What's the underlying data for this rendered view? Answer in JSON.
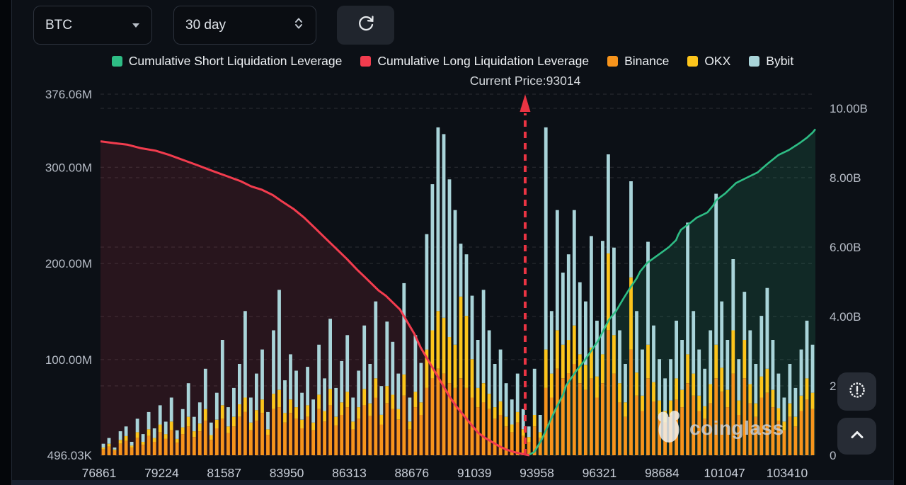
{
  "toolbar": {
    "symbol_select": {
      "value": "BTC",
      "icon": "caret-down"
    },
    "period_select": {
      "value": "30 day",
      "icon": "up-down-chevrons"
    },
    "refresh_button": {
      "icon": "refresh-cycle"
    }
  },
  "legend": {
    "items": [
      {
        "label": "Cumulative Short Liquidation Leverage",
        "color": "#2ebd85"
      },
      {
        "label": "Cumulative Long Liquidation Leverage",
        "color": "#f23c4e"
      },
      {
        "label": "Binance",
        "color": "#f7941c"
      },
      {
        "label": "OKX",
        "color": "#fdc51c"
      },
      {
        "label": "Bybit",
        "color": "#a9d4d9"
      }
    ]
  },
  "annotation": {
    "current_price": "Current Price:93014",
    "price_value": 93014
  },
  "watermark": {
    "text": "coinglass",
    "icon": "coinglass-logo"
  },
  "floating_buttons": {
    "alert_icon": "badge-alert",
    "scroll_top_icon": "chevron-up"
  },
  "chart_data": {
    "type": "mixed",
    "title": "",
    "left_axis": {
      "unit": "M",
      "min": 0.496,
      "max": 376.06,
      "ticks": [
        {
          "label": "376.06M",
          "value": 376.06
        },
        {
          "label": "300.00M",
          "value": 300
        },
        {
          "label": "200.00M",
          "value": 200
        },
        {
          "label": "100.00M",
          "value": 100
        },
        {
          "label": "496.03K",
          "value": 0.496
        }
      ]
    },
    "right_axis": {
      "unit": "B",
      "min": 0,
      "max": 10,
      "ticks": [
        {
          "label": "10.00B",
          "value": 10
        },
        {
          "label": "8.00B",
          "value": 8
        },
        {
          "label": "6.00B",
          "value": 6
        },
        {
          "label": "4.00B",
          "value": 4
        },
        {
          "label": "2.00B",
          "value": 2
        },
        {
          "label": "0",
          "value": 0
        }
      ]
    },
    "x_axis": {
      "labels": [
        "76861",
        "79224",
        "81587",
        "83950",
        "86313",
        "88676",
        "91039",
        "93958",
        "96321",
        "98684",
        "101047",
        "103410"
      ]
    },
    "bars": {
      "stack_order": [
        "Binance",
        "OKX",
        "Bybit"
      ],
      "colors": [
        "#f7941c",
        "#fdc51c",
        "#a9d4d9"
      ],
      "unit": "M",
      "values": [
        [
          6,
          2,
          4
        ],
        [
          9,
          3,
          6
        ],
        [
          5,
          1,
          2
        ],
        [
          12,
          4,
          9
        ],
        [
          15,
          5,
          10
        ],
        [
          8,
          2,
          4
        ],
        [
          18,
          6,
          14
        ],
        [
          11,
          3,
          8
        ],
        [
          20,
          7,
          18
        ],
        [
          14,
          4,
          10
        ],
        [
          24,
          8,
          20
        ],
        [
          17,
          5,
          13
        ],
        [
          26,
          9,
          25
        ],
        [
          13,
          4,
          9
        ],
        [
          22,
          7,
          19
        ],
        [
          30,
          10,
          35
        ],
        [
          19,
          6,
          15
        ],
        [
          25,
          8,
          22
        ],
        [
          36,
          12,
          42
        ],
        [
          16,
          5,
          13
        ],
        [
          28,
          9,
          28
        ],
        [
          38,
          14,
          68
        ],
        [
          23,
          7,
          20
        ],
        [
          30,
          10,
          30
        ],
        [
          40,
          13,
          42
        ],
        [
          45,
          15,
          90
        ],
        [
          26,
          8,
          26
        ],
        [
          36,
          11,
          38
        ],
        [
          44,
          14,
          52
        ],
        [
          21,
          6,
          18
        ],
        [
          48,
          16,
          66
        ],
        [
          50,
          18,
          104
        ],
        [
          34,
          10,
          34
        ],
        [
          44,
          14,
          47
        ],
        [
          38,
          12,
          38
        ],
        [
          28,
          9,
          28
        ],
        [
          40,
          12,
          40
        ],
        [
          26,
          8,
          24
        ],
        [
          48,
          15,
          52
        ],
        [
          35,
          11,
          34
        ],
        [
          52,
          17,
          73
        ],
        [
          31,
          9,
          30
        ],
        [
          42,
          13,
          43
        ],
        [
          50,
          16,
          59
        ],
        [
          27,
          8,
          25
        ],
        [
          38,
          12,
          38
        ],
        [
          52,
          17,
          66
        ],
        [
          41,
          13,
          41
        ],
        [
          60,
          20,
          80
        ],
        [
          32,
          10,
          30
        ],
        [
          54,
          18,
          67
        ],
        [
          48,
          15,
          55
        ],
        [
          37,
          11,
          37
        ],
        [
          62,
          22,
          95
        ],
        [
          27,
          8,
          25
        ],
        [
          50,
          16,
          59
        ],
        [
          42,
          13,
          41
        ],
        [
          70,
          40,
          120
        ],
        [
          80,
          50,
          152
        ],
        [
          90,
          60,
          191
        ],
        [
          85,
          58,
          191
        ],
        [
          75,
          48,
          164
        ],
        [
          70,
          45,
          140
        ],
        [
          80,
          85,
          55
        ],
        [
          70,
          75,
          64
        ],
        [
          60,
          40,
          66
        ],
        [
          50,
          20,
          50
        ],
        [
          55,
          20,
          97
        ],
        [
          48,
          16,
          66
        ],
        [
          38,
          12,
          45
        ],
        [
          42,
          14,
          54
        ],
        [
          30,
          10,
          35
        ],
        [
          24,
          8,
          26
        ],
        [
          34,
          11,
          40
        ],
        [
          20,
          7,
          21
        ],
        [
          14,
          5,
          11
        ],
        [
          30,
          12,
          48
        ],
        [
          18,
          6,
          18
        ],
        [
          70,
          40,
          231
        ],
        [
          60,
          25,
          65
        ],
        [
          90,
          40,
          125
        ],
        [
          80,
          35,
          75
        ],
        [
          85,
          35,
          89
        ],
        [
          95,
          40,
          120
        ],
        [
          75,
          30,
          75
        ],
        [
          68,
          26,
          66
        ],
        [
          80,
          32,
          116
        ],
        [
          60,
          22,
          58
        ],
        [
          75,
          30,
          118
        ],
        [
          130,
          80,
          103
        ],
        [
          85,
          40,
          91
        ],
        [
          55,
          20,
          55
        ],
        [
          40,
          15,
          40
        ],
        [
          110,
          75,
          100
        ],
        [
          62,
          24,
          64
        ],
        [
          46,
          16,
          48
        ],
        [
          80,
          35,
          107
        ],
        [
          56,
          20,
          59
        ],
        [
          42,
          15,
          43
        ],
        [
          34,
          12,
          34
        ],
        [
          42,
          15,
          43
        ],
        [
          58,
          22,
          60
        ],
        [
          50,
          18,
          52
        ],
        [
          75,
          30,
          137
        ],
        [
          62,
          23,
          65
        ],
        [
          46,
          16,
          48
        ],
        [
          38,
          13,
          39
        ],
        [
          54,
          20,
          56
        ],
        [
          80,
          35,
          157
        ],
        [
          66,
          25,
          69
        ],
        [
          50,
          18,
          52
        ],
        [
          85,
          45,
          74
        ],
        [
          42,
          15,
          43
        ],
        [
          80,
          40,
          50
        ],
        [
          54,
          20,
          56
        ],
        [
          40,
          14,
          41
        ],
        [
          60,
          22,
          63
        ],
        [
          65,
          25,
          84
        ],
        [
          50,
          18,
          52
        ],
        [
          36,
          13,
          36
        ],
        [
          26,
          9,
          25
        ],
        [
          40,
          14,
          41
        ],
        [
          30,
          10,
          30
        ],
        [
          46,
          16,
          48
        ],
        [
          58,
          22,
          60
        ],
        [
          48,
          17,
          50
        ]
      ]
    },
    "lines": {
      "long": {
        "name": "Cumulative Long Liquidation Leverage",
        "color": "#f23c4e",
        "fill": "rgba(244,60,80,0.12)",
        "unit": "B",
        "points": [
          [
            0.0,
            9.05
          ],
          [
            0.018,
            9.0
          ],
          [
            0.038,
            8.95
          ],
          [
            0.057,
            8.85
          ],
          [
            0.077,
            8.78
          ],
          [
            0.097,
            8.65
          ],
          [
            0.117,
            8.5
          ],
          [
            0.137,
            8.35
          ],
          [
            0.156,
            8.2
          ],
          [
            0.176,
            8.05
          ],
          [
            0.196,
            7.9
          ],
          [
            0.211,
            7.75
          ],
          [
            0.226,
            7.65
          ],
          [
            0.241,
            7.5
          ],
          [
            0.255,
            7.3
          ],
          [
            0.27,
            7.1
          ],
          [
            0.285,
            6.85
          ],
          [
            0.3,
            6.55
          ],
          [
            0.315,
            6.25
          ],
          [
            0.33,
            5.95
          ],
          [
            0.345,
            5.65
          ],
          [
            0.359,
            5.35
          ],
          [
            0.369,
            5.15
          ],
          [
            0.379,
            4.95
          ],
          [
            0.389,
            4.75
          ],
          [
            0.399,
            4.6
          ],
          [
            0.409,
            4.4
          ],
          [
            0.419,
            4.2
          ],
          [
            0.429,
            3.85
          ],
          [
            0.439,
            3.5
          ],
          [
            0.448,
            3.1
          ],
          [
            0.458,
            2.75
          ],
          [
            0.468,
            2.4
          ],
          [
            0.478,
            2.05
          ],
          [
            0.488,
            1.7
          ],
          [
            0.498,
            1.4
          ],
          [
            0.508,
            1.15
          ],
          [
            0.518,
            0.9
          ],
          [
            0.528,
            0.65
          ],
          [
            0.538,
            0.5
          ],
          [
            0.548,
            0.38
          ],
          [
            0.557,
            0.27
          ],
          [
            0.567,
            0.17
          ],
          [
            0.577,
            0.1
          ],
          [
            0.587,
            0.05
          ],
          [
            0.6,
            0.0
          ]
        ]
      },
      "short": {
        "name": "Cumulative Short Liquidation Leverage",
        "color": "#2ebd85",
        "fill": "rgba(46,189,133,0.15)",
        "unit": "B",
        "points": [
          [
            0.6,
            0.02
          ],
          [
            0.607,
            0.1
          ],
          [
            0.617,
            0.45
          ],
          [
            0.627,
            0.9
          ],
          [
            0.637,
            1.35
          ],
          [
            0.647,
            1.75
          ],
          [
            0.651,
            2.0
          ],
          [
            0.661,
            2.3
          ],
          [
            0.666,
            2.45
          ],
          [
            0.676,
            2.7
          ],
          [
            0.686,
            3.0
          ],
          [
            0.696,
            3.3
          ],
          [
            0.706,
            3.7
          ],
          [
            0.711,
            3.9
          ],
          [
            0.721,
            4.15
          ],
          [
            0.731,
            4.5
          ],
          [
            0.74,
            4.8
          ],
          [
            0.75,
            5.1
          ],
          [
            0.755,
            5.3
          ],
          [
            0.765,
            5.55
          ],
          [
            0.775,
            5.7
          ],
          [
            0.785,
            5.85
          ],
          [
            0.795,
            6.0
          ],
          [
            0.805,
            6.2
          ],
          [
            0.808,
            6.35
          ],
          [
            0.812,
            6.5
          ],
          [
            0.825,
            6.7
          ],
          [
            0.834,
            6.85
          ],
          [
            0.849,
            7.0
          ],
          [
            0.857,
            7.2
          ],
          [
            0.861,
            7.35
          ],
          [
            0.874,
            7.55
          ],
          [
            0.889,
            7.85
          ],
          [
            0.904,
            8.0
          ],
          [
            0.919,
            8.15
          ],
          [
            0.933,
            8.4
          ],
          [
            0.948,
            8.65
          ],
          [
            0.963,
            8.8
          ],
          [
            0.978,
            9.0
          ],
          [
            0.988,
            9.15
          ],
          [
            0.996,
            9.3
          ],
          [
            1.0,
            9.4
          ]
        ]
      }
    },
    "current_price_line": {
      "x_frac": 0.594,
      "color": "#ea3443",
      "style": "dashed-with-up-arrow"
    },
    "grid": {
      "dashed": true,
      "color": "rgba(255,255,255,0.13)"
    }
  }
}
